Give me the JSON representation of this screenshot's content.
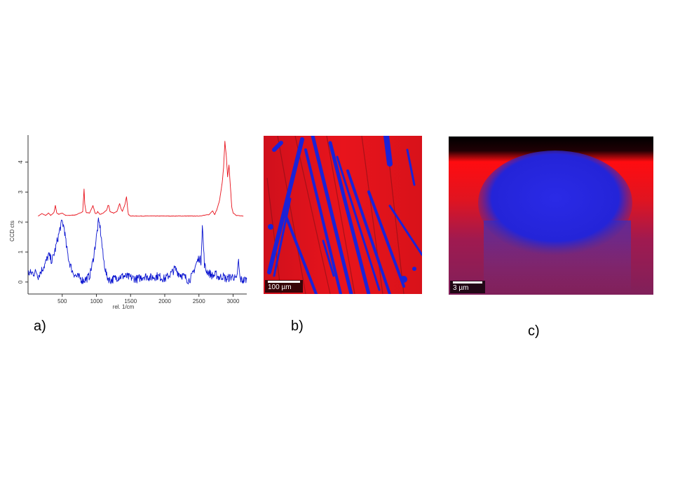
{
  "panel_labels": {
    "a": "a)",
    "b": "b)",
    "c": "c)"
  },
  "panel_b": {
    "scalebar_label": "100 µm",
    "colors": {
      "matrix": "#e0101a",
      "fibers": "#1020d8"
    }
  },
  "panel_c": {
    "scalebar_label": "3 µm",
    "colors": {
      "matrix": "#ff1010",
      "inclusion": "#2020e0",
      "background": "#000000"
    }
  },
  "chart_data": {
    "type": "line",
    "xlabel": "rel. 1/cm",
    "ylabel": "CCD cts",
    "xlim": [
      0,
      3200
    ],
    "ylim": [
      -0.4,
      4.9
    ],
    "xticks": [
      500,
      1000,
      1500,
      2000,
      2500,
      3000
    ],
    "yticks": [
      0,
      1,
      2,
      3,
      4
    ],
    "grid": false,
    "legend": "none",
    "series": [
      {
        "color": "#e8101a",
        "baseline": 2.2,
        "x": [
          150,
          200,
          260,
          300,
          330,
          380,
          400,
          420,
          450,
          500,
          550,
          600,
          700,
          760,
          800,
          820,
          830,
          850,
          900,
          950,
          980,
          1000,
          1020,
          1050,
          1100,
          1150,
          1170,
          1180,
          1200,
          1250,
          1300,
          1340,
          1360,
          1380,
          1420,
          1440,
          1460,
          1470,
          1500,
          2000,
          2500,
          2650,
          2700,
          2730,
          2760,
          2800,
          2840,
          2860,
          2880,
          2900,
          2920,
          2940,
          2960,
          2980,
          3000,
          3050,
          3150
        ],
        "y": [
          2.2,
          2.28,
          2.22,
          2.3,
          2.22,
          2.32,
          2.55,
          2.3,
          2.26,
          2.3,
          2.22,
          2.22,
          2.24,
          2.3,
          2.35,
          3.1,
          2.6,
          2.32,
          2.3,
          2.55,
          2.3,
          2.28,
          2.35,
          2.25,
          2.3,
          2.4,
          2.55,
          2.55,
          2.35,
          2.3,
          2.35,
          2.62,
          2.45,
          2.35,
          2.6,
          2.85,
          2.4,
          2.25,
          2.2,
          2.2,
          2.2,
          2.25,
          2.38,
          2.25,
          2.4,
          2.7,
          3.3,
          3.8,
          4.7,
          4.2,
          3.5,
          3.9,
          3.2,
          2.5,
          2.3,
          2.22,
          2.2
        ]
      },
      {
        "color": "#0a14d0",
        "baseline": 0,
        "x": [
          0,
          100,
          120,
          150,
          200,
          250,
          300,
          350,
          400,
          450,
          480,
          500,
          530,
          560,
          600,
          650,
          700,
          750,
          800,
          850,
          900,
          950,
          1000,
          1030,
          1050,
          1080,
          1100,
          1150,
          1200,
          1300,
          1400,
          1500,
          1600,
          1700,
          1800,
          1900,
          2000,
          2050,
          2100,
          2150,
          2200,
          2300,
          2350,
          2400,
          2450,
          2500,
          2530,
          2550,
          2580,
          2600,
          2650,
          2700,
          2750,
          2800,
          2850,
          2900,
          2950,
          3000,
          3050,
          3080,
          3100,
          3150,
          3200
        ],
        "y": [
          0.3,
          0.3,
          0.35,
          0.2,
          0.4,
          0.6,
          0.9,
          0.7,
          1.1,
          1.6,
          1.9,
          2.0,
          1.8,
          1.2,
          0.7,
          0.35,
          0.2,
          0.15,
          0.05,
          0.1,
          0.2,
          0.7,
          1.5,
          2.0,
          1.9,
          1.3,
          0.8,
          0.2,
          0.05,
          0.15,
          0.2,
          0.15,
          0.1,
          0.2,
          0.15,
          0.2,
          0.1,
          0.2,
          0.3,
          0.45,
          0.3,
          0.15,
          0.05,
          0.2,
          0.55,
          0.8,
          0.7,
          1.9,
          0.6,
          0.4,
          0.3,
          0.2,
          0.25,
          0.15,
          0.2,
          0.1,
          0.15,
          0.2,
          0.05,
          0.7,
          0.1,
          0.05,
          0.1
        ]
      }
    ]
  }
}
